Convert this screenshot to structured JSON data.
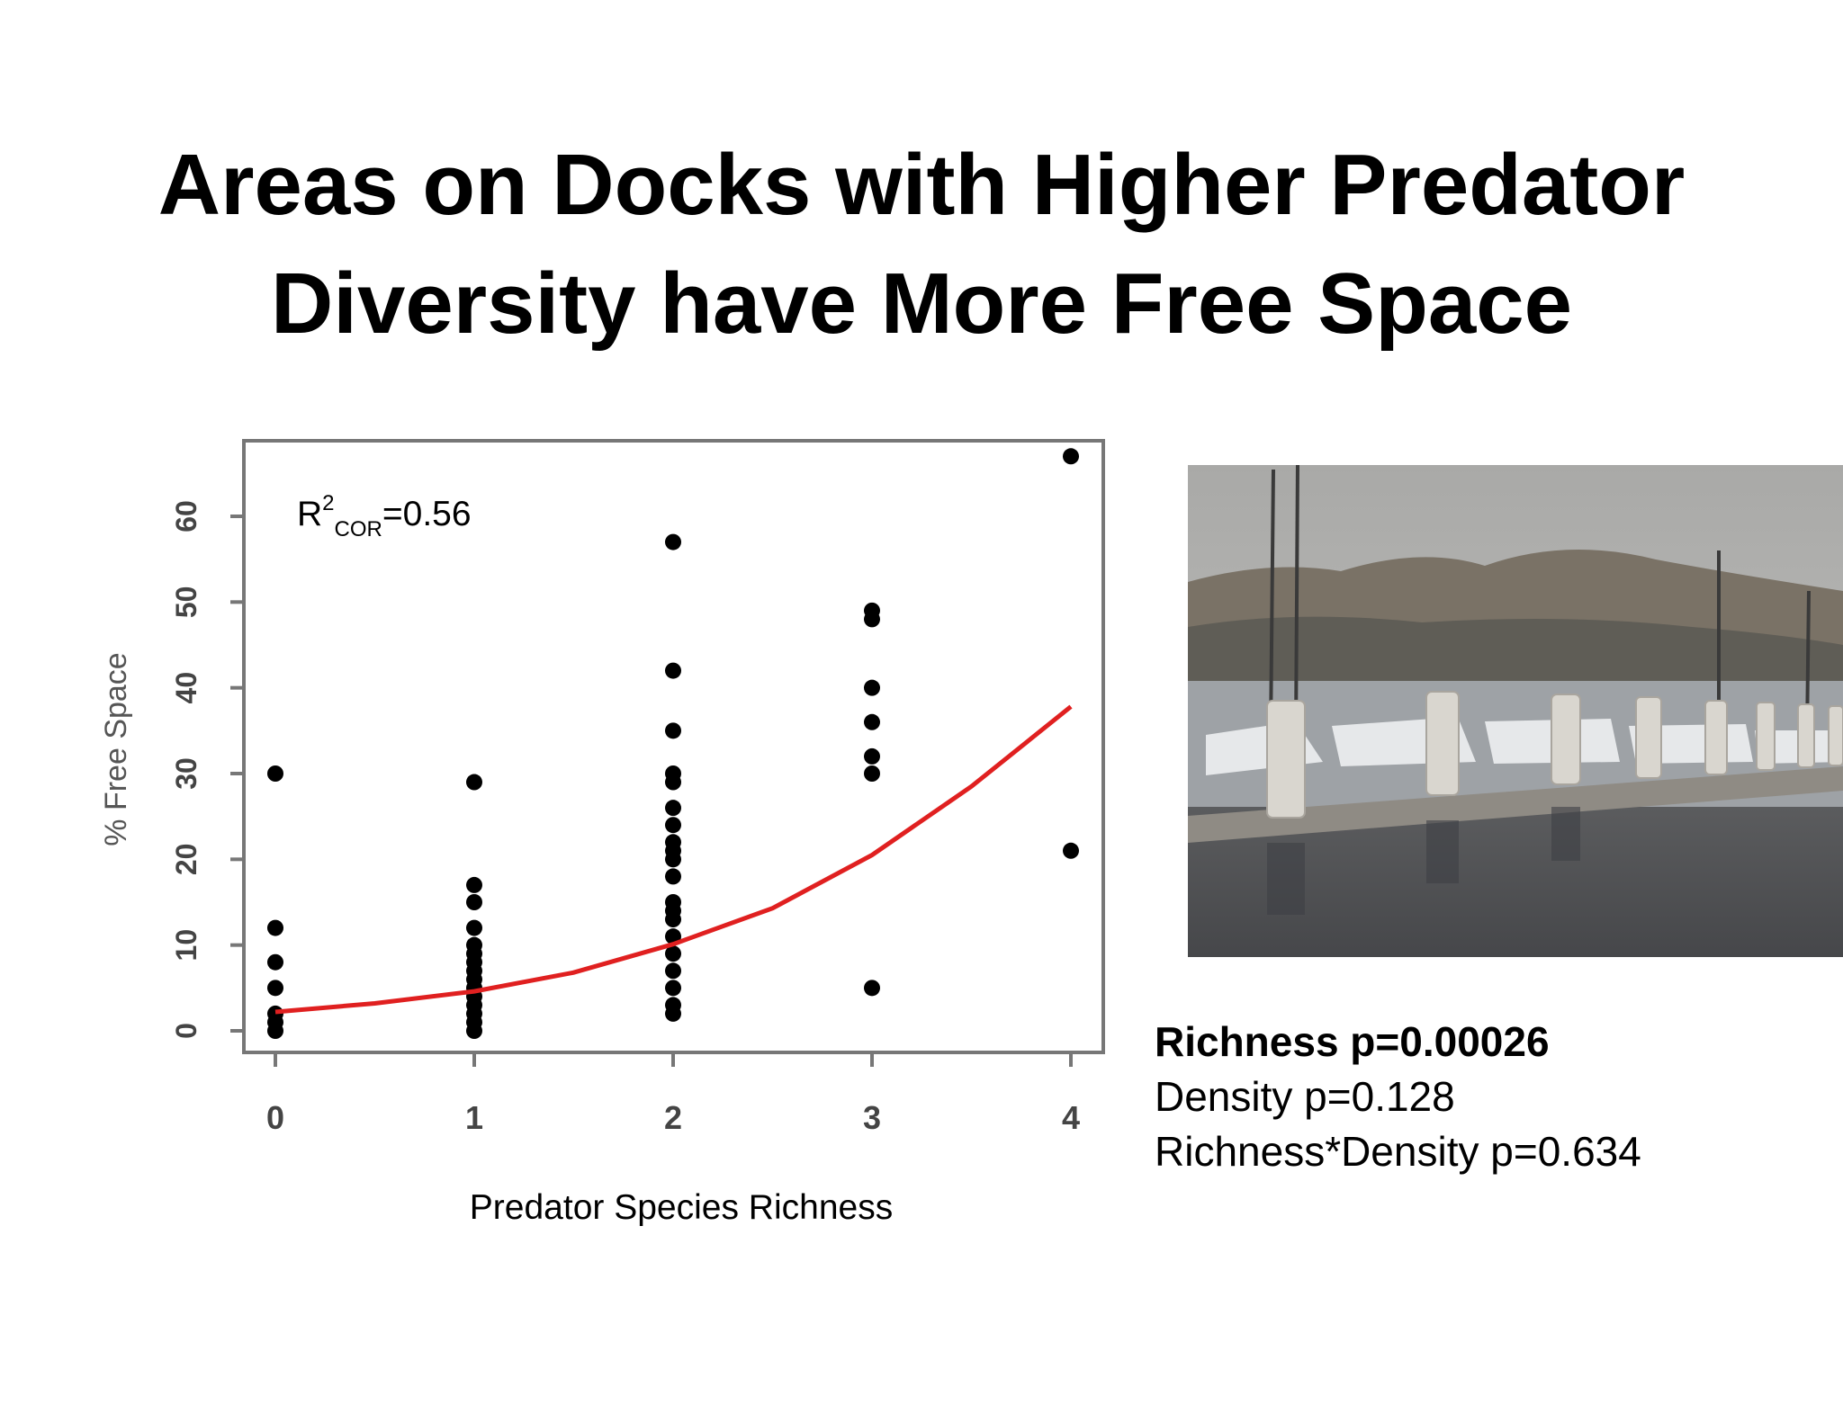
{
  "slide": {
    "title_line1": "Areas on Docks with Higher Predator",
    "title_line2": "Diversity have More Free Space"
  },
  "stats": {
    "richness": "Richness p=0.00026",
    "density": "Density p=0.128",
    "interaction": "Richness*Density p=0.634"
  },
  "photo": {
    "subject": "marina with docked sailboats and concrete pilings on grey water, hills in background"
  },
  "colors": {
    "fit_line": "#e02020",
    "points": "#000000"
  },
  "chart_data": {
    "type": "scatter",
    "xlabel": "Predator Species Richness",
    "ylabel": "% Free Space",
    "annotation": {
      "base": "R",
      "sup": "2",
      "sub": "COR",
      "value": "=0.56"
    },
    "xlim": [
      0,
      4
    ],
    "ylim": [
      -3,
      67
    ],
    "x_ticks": [
      0,
      1,
      2,
      3,
      4
    ],
    "y_ticks": [
      0,
      10,
      20,
      30,
      40,
      50,
      60
    ],
    "grid": false,
    "points": [
      {
        "x": 0,
        "y": 30
      },
      {
        "x": 0,
        "y": 12
      },
      {
        "x": 0,
        "y": 8
      },
      {
        "x": 0,
        "y": 5
      },
      {
        "x": 0,
        "y": 2
      },
      {
        "x": 0,
        "y": 1
      },
      {
        "x": 0,
        "y": 0
      },
      {
        "x": 1,
        "y": 29
      },
      {
        "x": 1,
        "y": 17
      },
      {
        "x": 1,
        "y": 15
      },
      {
        "x": 1,
        "y": 12
      },
      {
        "x": 1,
        "y": 10
      },
      {
        "x": 1,
        "y": 9
      },
      {
        "x": 1,
        "y": 8
      },
      {
        "x": 1,
        "y": 7
      },
      {
        "x": 1,
        "y": 6
      },
      {
        "x": 1,
        "y": 5
      },
      {
        "x": 1,
        "y": 4
      },
      {
        "x": 1,
        "y": 3
      },
      {
        "x": 1,
        "y": 2
      },
      {
        "x": 1,
        "y": 1
      },
      {
        "x": 1,
        "y": 0
      },
      {
        "x": 2,
        "y": 57
      },
      {
        "x": 2,
        "y": 42
      },
      {
        "x": 2,
        "y": 35
      },
      {
        "x": 2,
        "y": 30
      },
      {
        "x": 2,
        "y": 29
      },
      {
        "x": 2,
        "y": 26
      },
      {
        "x": 2,
        "y": 24
      },
      {
        "x": 2,
        "y": 22
      },
      {
        "x": 2,
        "y": 21
      },
      {
        "x": 2,
        "y": 20
      },
      {
        "x": 2,
        "y": 18
      },
      {
        "x": 2,
        "y": 15
      },
      {
        "x": 2,
        "y": 14
      },
      {
        "x": 2,
        "y": 13
      },
      {
        "x": 2,
        "y": 11
      },
      {
        "x": 2,
        "y": 9
      },
      {
        "x": 2,
        "y": 7
      },
      {
        "x": 2,
        "y": 5
      },
      {
        "x": 2,
        "y": 3
      },
      {
        "x": 2,
        "y": 2
      },
      {
        "x": 3,
        "y": 49
      },
      {
        "x": 3,
        "y": 48
      },
      {
        "x": 3,
        "y": 40
      },
      {
        "x": 3,
        "y": 36
      },
      {
        "x": 3,
        "y": 32
      },
      {
        "x": 3,
        "y": 30
      },
      {
        "x": 3,
        "y": 5
      },
      {
        "x": 4,
        "y": 67
      },
      {
        "x": 4,
        "y": 21
      }
    ],
    "fit": {
      "type": "exponential",
      "x": [
        0,
        0.5,
        1,
        1.5,
        2,
        2.5,
        3,
        3.5,
        4
      ],
      "y": [
        2.2,
        3.2,
        4.6,
        6.8,
        10.1,
        14.3,
        20.5,
        28.5,
        37.8
      ]
    }
  }
}
